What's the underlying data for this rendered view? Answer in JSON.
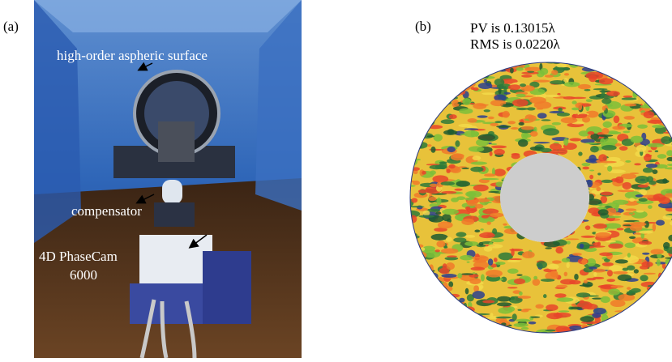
{
  "panel_a": {
    "label": "(a)",
    "annotations": [
      "high-order aspheric surface",
      "compensator",
      "4D PhaseCam",
      "6000"
    ]
  },
  "panel_b": {
    "label": "(b)",
    "pv": "PV is  0.13015λ",
    "rms": "RMS is 0.0220λ"
  }
}
